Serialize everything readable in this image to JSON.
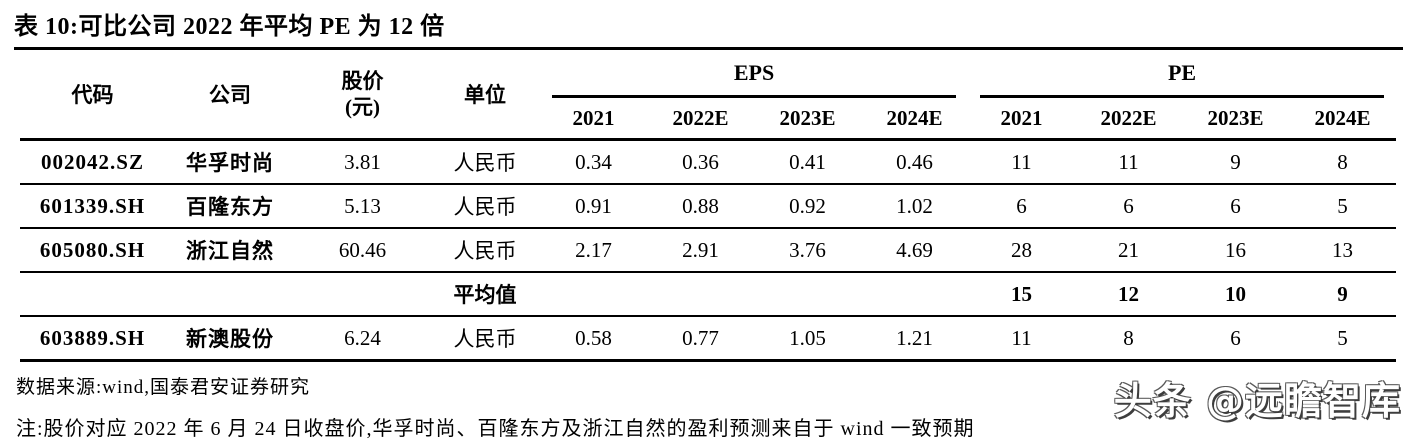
{
  "title": "表 10:可比公司 2022 年平均 PE 为 12 倍",
  "table": {
    "headers": {
      "code": "代码",
      "company": "公司",
      "price_line1": "股价",
      "price_line2": "(元)",
      "unit": "单位",
      "eps_group": "EPS",
      "pe_group": "PE",
      "years": [
        "2021",
        "2022E",
        "2023E",
        "2024E"
      ]
    },
    "rows": [
      {
        "code": "002042.SZ",
        "company": "华孚时尚",
        "price": "3.81",
        "unit": "人民币",
        "eps": [
          "0.34",
          "0.36",
          "0.41",
          "0.46"
        ],
        "pe": [
          "11",
          "11",
          "9",
          "8"
        ],
        "bold": false
      },
      {
        "code": "601339.SH",
        "company": "百隆东方",
        "price": "5.13",
        "unit": "人民币",
        "eps": [
          "0.91",
          "0.88",
          "0.92",
          "1.02"
        ],
        "pe": [
          "6",
          "6",
          "6",
          "5"
        ],
        "bold": false
      },
      {
        "code": "605080.SH",
        "company": "浙江自然",
        "price": "60.46",
        "unit": "人民币",
        "eps": [
          "2.17",
          "2.91",
          "3.76",
          "4.69"
        ],
        "pe": [
          "28",
          "21",
          "16",
          "13"
        ],
        "bold": false
      },
      {
        "code": "",
        "company": "",
        "price": "",
        "unit": "平均值",
        "eps": [
          "",
          "",
          "",
          ""
        ],
        "pe": [
          "15",
          "12",
          "10",
          "9"
        ],
        "bold": true
      },
      {
        "code": "603889.SH",
        "company": "新澳股份",
        "price": "6.24",
        "unit": "人民币",
        "eps": [
          "0.58",
          "0.77",
          "1.05",
          "1.21"
        ],
        "pe": [
          "11",
          "8",
          "6",
          "5"
        ],
        "bold": false
      }
    ]
  },
  "footer": {
    "source": "数据来源:wind,国泰君安证券研究",
    "note": "注:股价对应 2022 年 6 月 24 日收盘价,华孚时尚、百隆东方及浙江自然的盈利预测来自于 wind 一致预期"
  },
  "watermark": "头条 @远瞻智库",
  "colors": {
    "text": "#000000",
    "rule": "#000000",
    "watermark_fill": "#ffffff",
    "watermark_outline": "#4a4a4a"
  }
}
